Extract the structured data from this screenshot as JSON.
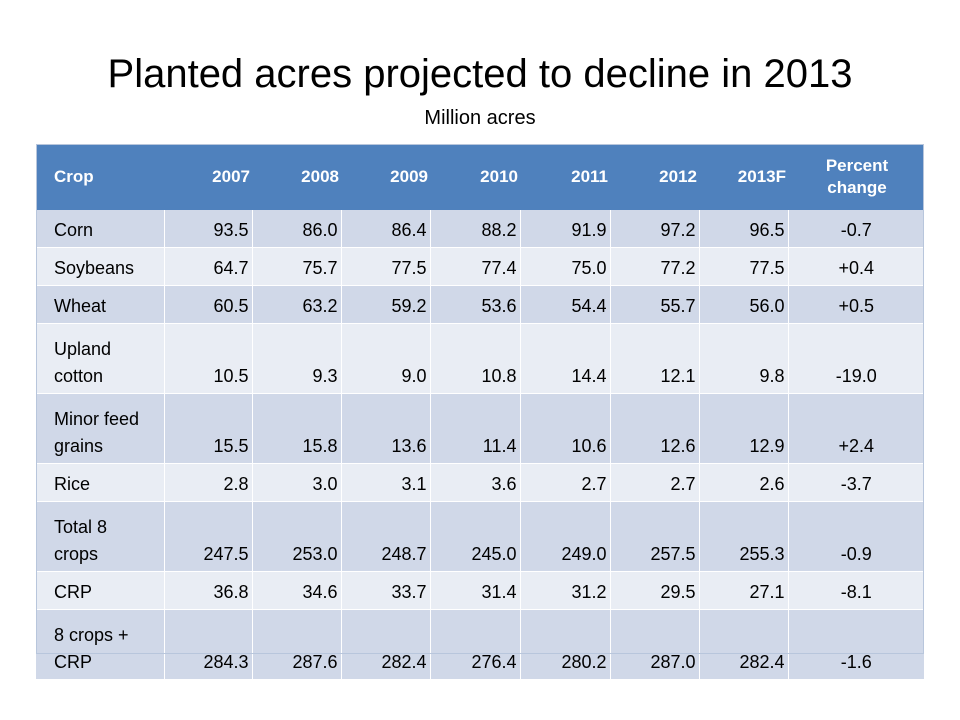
{
  "chart_data": {
    "type": "table",
    "title": "Planted acres projected to decline in 2013",
    "subtitle": "Million acres",
    "columns": [
      "Crop",
      "2007",
      "2008",
      "2009",
      "2010",
      "2011",
      "2012",
      "2013F",
      "Percent change"
    ],
    "rows": [
      {
        "crop": "Corn",
        "values": [
          "93.5",
          "86.0",
          "86.4",
          "88.2",
          "91.9",
          "97.2",
          "96.5",
          "-0.7"
        ]
      },
      {
        "crop": "Soybeans",
        "values": [
          "64.7",
          "75.7",
          "77.5",
          "77.4",
          "75.0",
          "77.2",
          "77.5",
          "+0.4"
        ]
      },
      {
        "crop": "Wheat",
        "values": [
          "60.5",
          "63.2",
          "59.2",
          "53.6",
          "54.4",
          "55.7",
          "56.0",
          "+0.5"
        ]
      },
      {
        "crop": "Upland cotton",
        "values": [
          "10.5",
          "9.3",
          "9.0",
          "10.8",
          "14.4",
          "12.1",
          "9.8",
          "-19.0"
        ]
      },
      {
        "crop": "Minor feed grains",
        "values": [
          "15.5",
          "15.8",
          "13.6",
          "11.4",
          "10.6",
          "12.6",
          "12.9",
          "+2.4"
        ]
      },
      {
        "crop": "Rice",
        "values": [
          "2.8",
          "3.0",
          "3.1",
          "3.6",
          "2.7",
          "2.7",
          "2.6",
          "-3.7"
        ]
      },
      {
        "crop": "Total 8 crops",
        "values": [
          "247.5",
          "253.0",
          "248.7",
          "245.0",
          "249.0",
          "257.5",
          "255.3",
          "-0.9"
        ]
      },
      {
        "crop": "CRP",
        "values": [
          "36.8",
          "34.6",
          "33.7",
          "31.4",
          "31.2",
          "29.5",
          "27.1",
          "-8.1"
        ]
      },
      {
        "crop": "8 crops + CRP",
        "values": [
          "284.3",
          "287.6",
          "282.4",
          "276.4",
          "280.2",
          "287.0",
          "282.4",
          "-1.6"
        ]
      }
    ],
    "colors": {
      "header": "#4f81bd",
      "row_dark": "#d0d8e8",
      "row_light": "#e9edf4"
    }
  }
}
